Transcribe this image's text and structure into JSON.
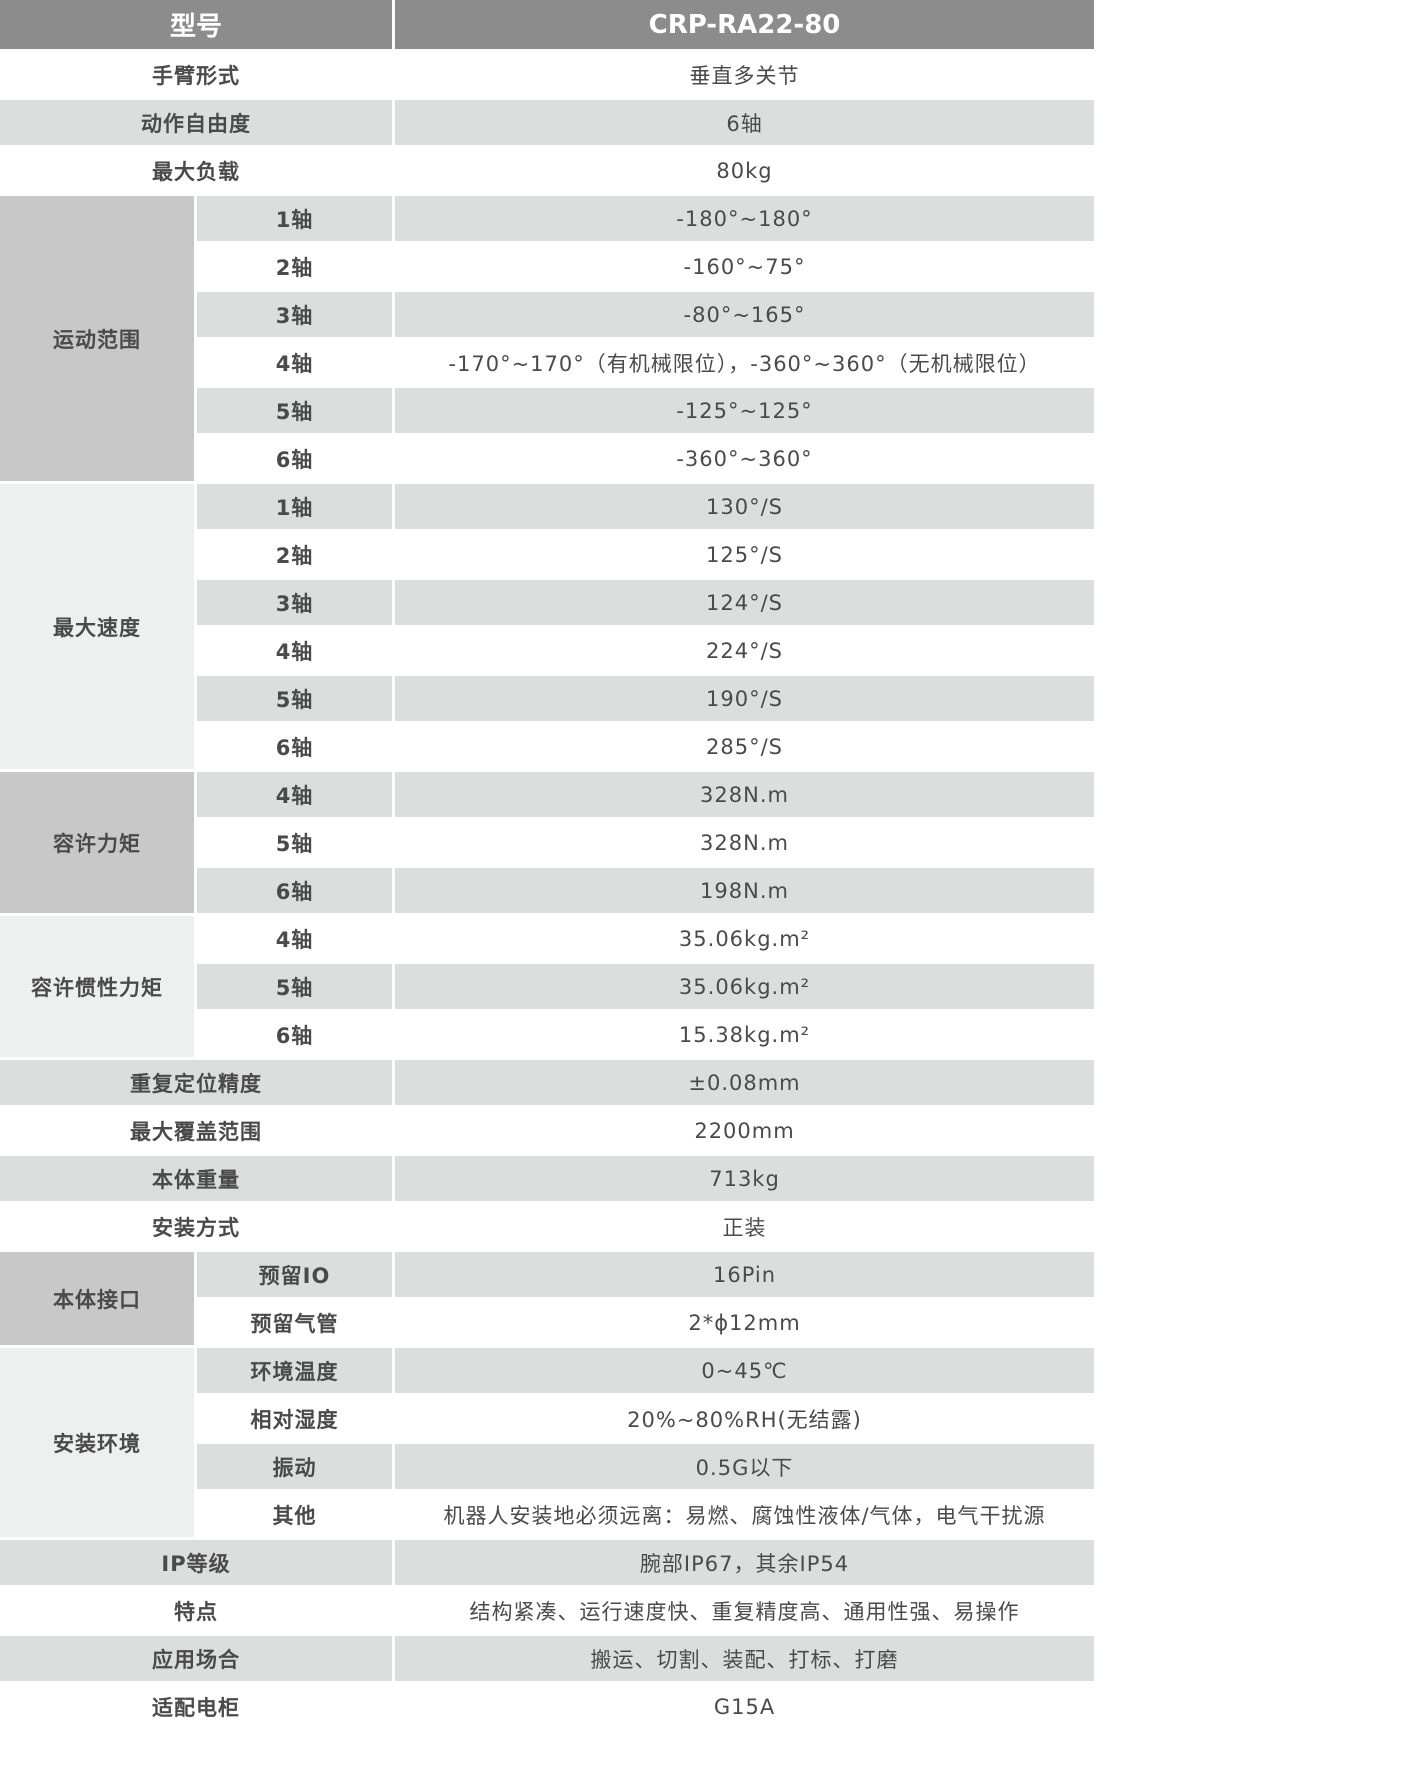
{
  "header": {
    "label": "型号",
    "model": "CRP-RA22-80"
  },
  "rows": [
    {
      "label": "手臂形式",
      "value": "垂直多关节"
    },
    {
      "label": "动作自由度",
      "value": "6轴"
    },
    {
      "label": "最大负载",
      "value": "80kg"
    },
    {
      "group": "运动范围",
      "shade": "dark",
      "items": [
        {
          "label": "1轴",
          "value": "-180°~180°"
        },
        {
          "label": "2轴",
          "value": "-160°~75°"
        },
        {
          "label": "3轴",
          "value": "-80°~165°"
        },
        {
          "label": "4轴",
          "value": "-170°~170°（有机械限位），-360°~360°（无机械限位）"
        },
        {
          "label": "5轴",
          "value": "-125°~125°"
        },
        {
          "label": "6轴",
          "value": "-360°~360°"
        }
      ]
    },
    {
      "group": "最大速度",
      "shade": "light",
      "items": [
        {
          "label": "1轴",
          "value": "130°/S"
        },
        {
          "label": "2轴",
          "value": "125°/S"
        },
        {
          "label": "3轴",
          "value": "124°/S"
        },
        {
          "label": "4轴",
          "value": "224°/S"
        },
        {
          "label": "5轴",
          "value": "190°/S"
        },
        {
          "label": "6轴",
          "value": "285°/S"
        }
      ]
    },
    {
      "group": "容许力矩",
      "shade": "dark",
      "items": [
        {
          "label": "4轴",
          "value": "328N.m"
        },
        {
          "label": "5轴",
          "value": "328N.m"
        },
        {
          "label": "6轴",
          "value": "198N.m"
        }
      ]
    },
    {
      "group": "容许惯性力矩",
      "shade": "light",
      "items": [
        {
          "label": "4轴",
          "value": "35.06kg.m²"
        },
        {
          "label": "5轴",
          "value": "35.06kg.m²"
        },
        {
          "label": "6轴",
          "value": "15.38kg.m²"
        }
      ]
    },
    {
      "label": "重复定位精度",
      "value": "±0.08mm"
    },
    {
      "label": "最大覆盖范围",
      "value": "2200mm"
    },
    {
      "label": "本体重量",
      "value": "713kg"
    },
    {
      "label": "安装方式",
      "value": "正装"
    },
    {
      "group": "本体接口",
      "shade": "dark",
      "items": [
        {
          "label": "预留IO",
          "value": "16Pin"
        },
        {
          "label": "预留气管",
          "value": "2*ϕ12mm"
        }
      ]
    },
    {
      "group": "安装环境",
      "shade": "light",
      "items": [
        {
          "label": "环境温度",
          "value": "0~45℃"
        },
        {
          "label": "相对湿度",
          "value": "20%~80%RH(无结露)"
        },
        {
          "label": "振动",
          "value": "0.5G以下"
        },
        {
          "label": "其他",
          "value": "机器人安装地必须远离：易燃、腐蚀性液体/气体，电气干扰源"
        }
      ]
    },
    {
      "label": "IP等级",
      "value": "腕部IP67，其余IP54"
    },
    {
      "label": "特点",
      "value": "结构紧凑、运行速度快、重复精度高、通用性强、易操作"
    },
    {
      "label": "应用场合",
      "value": "搬运、切割、装配、打标、打磨"
    },
    {
      "label": "适配电柜",
      "value": "G15A"
    }
  ]
}
